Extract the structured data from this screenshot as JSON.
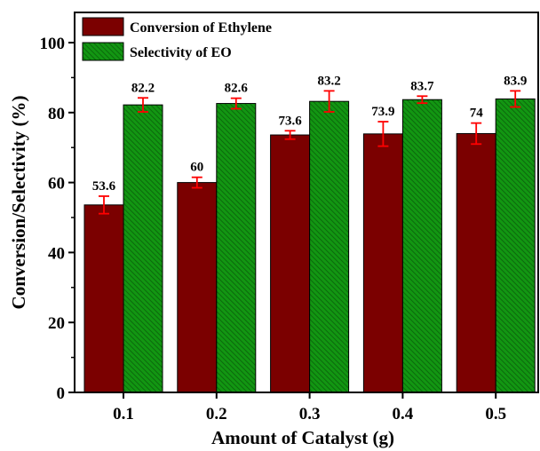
{
  "chart_data": {
    "type": "bar",
    "title": "",
    "xlabel": "Amount of Catalyst (g)",
    "ylabel": "Conversion/Selectivity (%)",
    "categories": [
      "0.1",
      "0.2",
      "0.3",
      "0.4",
      "0.5"
    ],
    "ylim": [
      0,
      100
    ],
    "yticks": [
      0,
      20,
      40,
      60,
      80,
      100
    ],
    "legend_position": "top-left",
    "series": [
      {
        "name": "Conversion of Ethylene",
        "color": "#7b0000",
        "pattern": "solid",
        "values": [
          53.6,
          60,
          73.6,
          73.9,
          74
        ],
        "labels": [
          "53.6",
          "60",
          "73.6",
          "73.9",
          "74"
        ],
        "errors": [
          2.5,
          1.5,
          1.2,
          3.5,
          3.0
        ]
      },
      {
        "name": "Selectivity of EO",
        "color": "#129612",
        "pattern": "diagonal-hatch",
        "values": [
          82.2,
          82.6,
          83.2,
          83.7,
          83.9
        ],
        "labels": [
          "82.2",
          "82.6",
          "83.2",
          "83.7",
          "83.9"
        ],
        "errors": [
          2.0,
          1.5,
          3.0,
          1.0,
          2.3
        ]
      }
    ],
    "error_bar_color": "#ff0000"
  }
}
